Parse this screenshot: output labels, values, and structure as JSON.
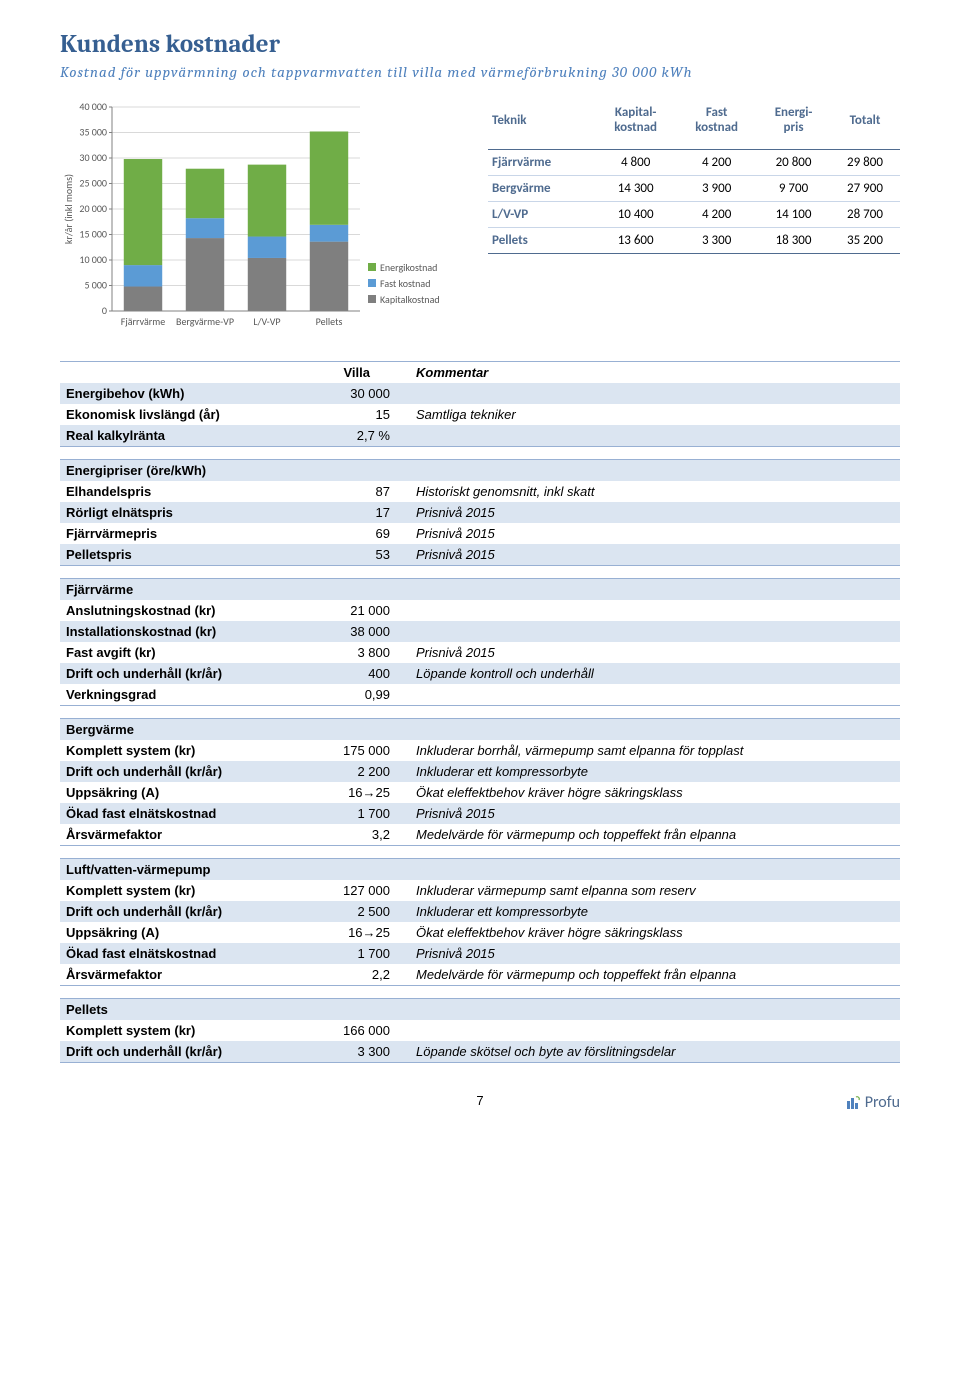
{
  "header": {
    "title": "Kundens kostnader",
    "subtitle": "Kostnad för uppvärmning och tappvarmvatten till villa med värmeförbrukning 30 000 kWh"
  },
  "chart": {
    "type": "stacked-bar",
    "ylabel": "kr/år (inkl moms)",
    "ylim": [
      0,
      40000
    ],
    "ytick_step": 5000,
    "yticks": [
      "0",
      "5 000",
      "10 000",
      "15 000",
      "20 000",
      "25 000",
      "30 000",
      "35 000",
      "40 000"
    ],
    "categories": [
      "Fjärrvärme",
      "Bergvärme-VP",
      "L/V-VP",
      "Pellets"
    ],
    "series": [
      {
        "name": "Kapitalkostnad",
        "color": "#7f7f7f",
        "values": [
          4800,
          14300,
          10400,
          13600
        ]
      },
      {
        "name": "Fast kostnad",
        "color": "#5b9bd5",
        "values": [
          4200,
          3900,
          4200,
          3300
        ]
      },
      {
        "name": "Energikostnad",
        "color": "#70ad47",
        "values": [
          20800,
          9700,
          14100,
          18300
        ]
      }
    ],
    "legend_labels": [
      "Energikostnad",
      "Fast kostnad",
      "Kapitalkostnad"
    ],
    "bg": "#ffffff",
    "grid_color": "#d9d9d9",
    "label_fontsize": 10
  },
  "cost_table": {
    "headers": [
      "Teknik",
      "Kapital-\nkostnad",
      "Fast\nkostnad",
      "Energi-\npris",
      "Totalt"
    ],
    "rows": [
      [
        "Fjärrvärme",
        "4 800",
        "4 200",
        "20 800",
        "29 800"
      ],
      [
        "Bergvärme",
        "14 300",
        "3 900",
        "9 700",
        "27 900"
      ],
      [
        "L/V-VP",
        "10 400",
        "4 200",
        "14 100",
        "28 700"
      ],
      [
        "Pellets",
        "13 600",
        "3 300",
        "18 300",
        "35 200"
      ]
    ]
  },
  "tables": {
    "villa_label": "Villa",
    "kommentar_label": "Kommentar",
    "general": [
      {
        "k": "Energibehov (kWh)",
        "v": "30 000",
        "c": ""
      },
      {
        "k": "Ekonomisk livslängd (år)",
        "v": "15",
        "c": "Samtliga tekniker"
      },
      {
        "k": "Real kalkylränta",
        "v": "2,7 %",
        "c": ""
      }
    ],
    "prices_hdr": "Energipriser (öre/kWh)",
    "prices": [
      {
        "k": "Elhandelspris",
        "v": "87",
        "c": "Historiskt genomsnitt, inkl skatt"
      },
      {
        "k": "Rörligt elnätspris",
        "v": "17",
        "c": "Prisnivå 2015"
      },
      {
        "k": "Fjärrvärmepris",
        "v": "69",
        "c": "Prisnivå 2015"
      },
      {
        "k": "Pelletspris",
        "v": "53",
        "c": "Prisnivå 2015"
      }
    ],
    "fjarr_hdr": "Fjärrvärme",
    "fjarr": [
      {
        "k": "Anslutningskostnad (kr)",
        "v": "21 000",
        "c": ""
      },
      {
        "k": "Installationskostnad (kr)",
        "v": "38 000",
        "c": ""
      },
      {
        "k": "Fast avgift (kr)",
        "v": "3 800",
        "c": "Prisnivå 2015"
      },
      {
        "k": "Drift och underhåll (kr/år)",
        "v": "400",
        "c": "Löpande kontroll och underhåll"
      },
      {
        "k": "Verkningsgrad",
        "v": "0,99",
        "c": ""
      }
    ],
    "berg_hdr": "Bergvärme",
    "berg": [
      {
        "k": "Komplett system (kr)",
        "v": "175 000",
        "c": "Inkluderar borrhål, värmepump samt elpanna för topplast"
      },
      {
        "k": "Drift och underhåll (kr/år)",
        "v": "2 200",
        "c": "Inkluderar ett kompressorbyte"
      },
      {
        "k": "Uppsäkring (A)",
        "v": "16→25",
        "c": "Ökat eleffektbehov kräver högre säkringsklass"
      },
      {
        "k": "Ökad fast elnätskostnad",
        "v": "1 700",
        "c": "Prisnivå 2015"
      },
      {
        "k": "Årsvärmefaktor",
        "v": "3,2",
        "c": "Medelvärde för värmepump och toppeffekt från elpanna"
      }
    ],
    "luft_hdr": "Luft/vatten-värmepump",
    "luft": [
      {
        "k": "Komplett system (kr)",
        "v": "127 000",
        "c": "Inkluderar värmepump samt elpanna som reserv"
      },
      {
        "k": "Drift och underhåll (kr/år)",
        "v": "2 500",
        "c": "Inkluderar ett kompressorbyte"
      },
      {
        "k": "Uppsäkring (A)",
        "v": "16→25",
        "c": "Ökat eleffektbehov kräver högre säkringsklass"
      },
      {
        "k": "Ökad fast elnätskostnad",
        "v": "1 700",
        "c": "Prisnivå 2015"
      },
      {
        "k": "Årsvärmefaktor",
        "v": "2,2",
        "c": "Medelvärde för värmepump och toppeffekt från elpanna"
      }
    ],
    "pellets_hdr": "Pellets",
    "pellets": [
      {
        "k": "Komplett system (kr)",
        "v": "166 000",
        "c": ""
      },
      {
        "k": "Drift och underhåll (kr/år)",
        "v": "3 300",
        "c": "Löpande skötsel och byte av förslitningsdelar"
      }
    ]
  },
  "footer": {
    "page": "7",
    "brand": "Profu"
  }
}
